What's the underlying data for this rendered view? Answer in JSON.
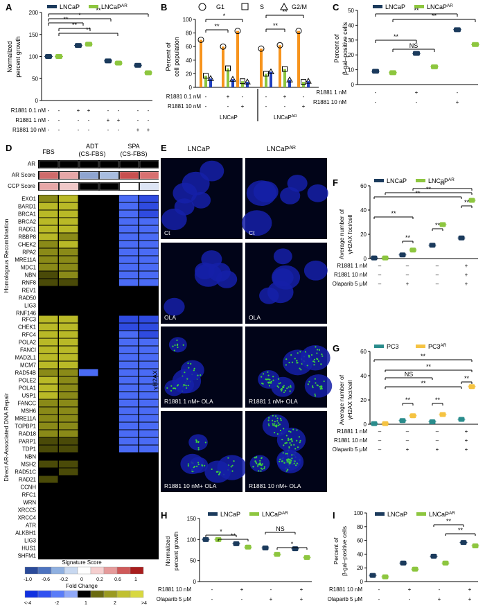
{
  "colors": {
    "navy": "#1b3a5c",
    "green": "#8dc63f",
    "orange": "#f7941d",
    "blue": "#1f3fbf",
    "teal": "#2a8c8c",
    "gold": "#f5c342",
    "nucleus": "#1520a8",
    "foci": "#3cd23c"
  },
  "panels": {
    "A": {
      "letter": "A",
      "ylabel1": "Normalized",
      "ylabel2": "percent growth",
      "legend": [
        {
          "label": "LNCaP",
          "sup": ""
        },
        {
          "label": "LNCaP",
          "sup": "AR"
        }
      ],
      "ticks": [
        "0",
        "50",
        "100",
        "150",
        "200"
      ],
      "sig": [
        "**",
        "*",
        "**",
        "**",
        "**"
      ],
      "rows": [
        {
          "label": "R1881 0.1 nM",
          "vals": [
            "-",
            "-",
            "+",
            "+",
            "-",
            "-",
            "-",
            "-"
          ]
        },
        {
          "label": "R1881 1 nM",
          "vals": [
            "-",
            "-",
            "-",
            "-",
            "+",
            "+",
            "-",
            "-"
          ]
        },
        {
          "label": "R1881 10 nM",
          "vals": [
            "-",
            "-",
            "-",
            "-",
            "-",
            "-",
            "+",
            "+"
          ]
        }
      ]
    },
    "B": {
      "letter": "B",
      "ylabel1": "Percent of",
      "ylabel2": "cell population",
      "legend": [
        "G1",
        "S",
        "G2/M"
      ],
      "ticks": [
        "0",
        "20",
        "40",
        "60",
        "80",
        "100"
      ],
      "sig": [
        "*",
        "**",
        "**",
        "**"
      ],
      "rows": [
        {
          "label": "R1881 0.1 nM",
          "vals": [
            "-",
            "+",
            "-",
            "-",
            "+",
            "-"
          ]
        },
        {
          "label": "R1881 10 nM",
          "vals": [
            "-",
            "-",
            "+",
            "-",
            "-",
            "+"
          ]
        }
      ],
      "groups": [
        {
          "label": "LNCaP",
          "sup": ""
        },
        {
          "label": "LNCaP",
          "sup": "AR"
        }
      ]
    },
    "C": {
      "letter": "C",
      "ylabel1": "Percent of",
      "ylabel2": "β-gal–positive cells",
      "legend": [
        {
          "label": "LNCaP",
          "sup": ""
        },
        {
          "label": "LNCaP",
          "sup": "AR"
        }
      ],
      "ticks": [
        "0",
        "10",
        "20",
        "30",
        "40",
        "50"
      ],
      "sig": [
        "**",
        "**",
        "**",
        "NS"
      ],
      "rows": [
        {
          "label": "R1881 1 nM",
          "vals": [
            "-",
            "+",
            "-"
          ]
        },
        {
          "label": "R1881 10 nM",
          "vals": [
            "-",
            "-",
            "+"
          ]
        }
      ]
    },
    "D": {
      "letter": "D",
      "cols": [
        "FBS",
        "ADT",
        "(CS-FBS)",
        "SPA",
        "(CS-FBS)"
      ],
      "toprows": [
        "AR",
        "AR Score",
        "CCP Score"
      ],
      "hr_label": "Homologous Recombination",
      "hr_genes": [
        "EXO1",
        "BARD1",
        "BRCA1",
        "BRCA2",
        "RAD51",
        "RBBP8",
        "CHEK2",
        "RPA2",
        "MRE11A",
        "MDC1",
        "NBN",
        "RNF8",
        "REV1",
        "RAD50",
        "LIG3",
        "RNF146"
      ],
      "ar_label": "Direct AR-Associated DNA Repair",
      "ar_genes": [
        "RFC3",
        "CHEK1",
        "RFC4",
        "POLA2",
        "FANCI",
        "MAD2L1",
        "MCM7",
        "RAD54B",
        "POLE2",
        "POLA1",
        "USP1",
        "FANCC",
        "MSH6",
        "MRE11A",
        "TOPBP1",
        "RAD18",
        "PARP1",
        "TDP1",
        "NBN",
        "MSH2",
        "RAD51C",
        "RAD21",
        "CCNH",
        "RFC1",
        "WRN",
        "XRCC5",
        "XRCC4",
        "ATR",
        "ALKBH1",
        "LIG3",
        "HUS1",
        "SHFM1"
      ],
      "sig_title": "Signature Score",
      "sig_ticks": [
        "-1.0",
        "-0.6",
        "-0.2",
        "0",
        "0.2",
        "0.6",
        "1"
      ],
      "fc_title": "Fold Change",
      "fc_ticks": [
        "<-4",
        "-2",
        "1",
        "2",
        ">4"
      ]
    },
    "E": {
      "letter": "E",
      "col1": "LNCaP",
      "col2": "LNCaP",
      "col2sup": "AR",
      "ylabel": "γH2AX",
      "labels": [
        [
          "Ct",
          "Ct"
        ],
        [
          "OLA",
          "OLA"
        ],
        [
          "R1881 1 nM+ OLA",
          "R1881 1 nM+ OLA"
        ],
        [
          "R1881 10 nM+ OLA",
          "R1881 10 nM+ OLA"
        ]
      ]
    },
    "F": {
      "letter": "F",
      "ylabel1": "Average number of",
      "ylabel2": "γH2AX foci/cell",
      "legend": [
        {
          "label": "LNCaP",
          "sup": ""
        },
        {
          "label": "LNCaP",
          "sup": "AR"
        }
      ],
      "ticks": [
        "0",
        "20",
        "40",
        "60"
      ],
      "sig": [
        "**",
        "**",
        "**",
        "**",
        "**",
        "**",
        "**"
      ],
      "rows": [
        {
          "label": "R1881 1 nM",
          "vals": [
            "–",
            "–",
            "–",
            "+"
          ]
        },
        {
          "label": "R1881 10 nM",
          "vals": [
            "–",
            "–",
            "–",
            "+"
          ]
        },
        {
          "label": "Olaparib 5 μM",
          "vals": [
            "–",
            "+",
            "–",
            "+"
          ]
        }
      ]
    },
    "G": {
      "letter": "G",
      "ylabel1": "Average number of",
      "ylabel2": "γH2AX foci/cell",
      "legend": [
        {
          "label": "PC3",
          "sup": ""
        },
        {
          "label": "PC3",
          "sup": "AR"
        }
      ],
      "ticks": [
        "0",
        "20",
        "40",
        "60"
      ],
      "sig": [
        "**",
        "**",
        "NS",
        "**",
        "**",
        "**",
        "**"
      ],
      "rows": [
        {
          "label": "R1881 1 nM",
          "vals": [
            "–",
            "–",
            "–",
            "+"
          ]
        },
        {
          "label": "R1881 10 nM",
          "vals": [
            "–",
            "–",
            "–",
            "+"
          ]
        },
        {
          "label": "Olaparib 5 μM",
          "vals": [
            "–",
            "+",
            "+",
            "+"
          ]
        }
      ]
    },
    "H": {
      "letter": "H",
      "ylabel1": "Normalized",
      "ylabel2": "percent growth",
      "legend": [
        {
          "label": "LNCaP",
          "sup": ""
        },
        {
          "label": "LNCaP",
          "sup": "AR"
        }
      ],
      "ticks": [
        "0",
        "50",
        "100",
        "150"
      ],
      "sig": [
        "*",
        "**",
        "NS",
        "*"
      ],
      "rows": [
        {
          "label": "R1881 10 nM",
          "vals": [
            "-",
            "+",
            "-",
            "+"
          ]
        },
        {
          "label": "Olaparib 5 μM",
          "vals": [
            "-",
            "-",
            "+",
            "+"
          ]
        }
      ]
    },
    "I": {
      "letter": "I",
      "ylabel1": "Percent of",
      "ylabel2": "β-gal–positive cells",
      "legend": [
        {
          "label": "LNCaP",
          "sup": ""
        },
        {
          "label": "LNCaP",
          "sup": "AR"
        }
      ],
      "ticks": [
        "0",
        "20",
        "40",
        "60",
        "80",
        "100"
      ],
      "sig": [
        "**",
        "**"
      ],
      "rows": [
        {
          "label": "R1881 10 nM",
          "vals": [
            "-",
            "+",
            "-",
            "+"
          ]
        },
        {
          "label": "Olaparib 5 μM",
          "vals": [
            "-",
            "-",
            "+",
            "+"
          ]
        }
      ]
    }
  },
  "chart_data": [
    {
      "panel": "A",
      "type": "scatter",
      "ylim": [
        0,
        200
      ],
      "series": [
        {
          "name": "LNCaP",
          "values": [
            100,
            125,
            90,
            80
          ]
        },
        {
          "name": "LNCaP AR",
          "values": [
            100,
            128,
            85,
            63
          ]
        }
      ]
    },
    {
      "panel": "B",
      "type": "bar",
      "ylim": [
        0,
        100
      ],
      "series": [
        {
          "name": "G1",
          "values": [
            70,
            60,
            83,
            57,
            62,
            83
          ]
        },
        {
          "name": "S",
          "values": [
            17,
            28,
            9,
            20,
            27,
            8
          ]
        },
        {
          "name": "G2/M",
          "values": [
            13,
            12,
            8,
            23,
            11,
            9
          ]
        }
      ]
    },
    {
      "panel": "C",
      "type": "scatter",
      "ylim": [
        0,
        50
      ],
      "series": [
        {
          "name": "LNCaP",
          "values": [
            9,
            21,
            37
          ]
        },
        {
          "name": "LNCaP AR",
          "values": [
            8,
            12,
            27
          ]
        }
      ]
    },
    {
      "panel": "D",
      "type": "heatmap",
      "hr_levels": [
        [
          2,
          3,
          0,
          0,
          -3,
          -2
        ],
        [
          3,
          3,
          0,
          0,
          -3,
          -2
        ],
        [
          3,
          3,
          0,
          0,
          -3,
          -2
        ],
        [
          3,
          3,
          0,
          0,
          -3,
          -3
        ],
        [
          3,
          3,
          0,
          0,
          -3,
          -3
        ],
        [
          3,
          2,
          0,
          0,
          -3,
          -3
        ],
        [
          2,
          3,
          0,
          0,
          -3,
          -3
        ],
        [
          2,
          2,
          0,
          0,
          -3,
          -3
        ],
        [
          2,
          2,
          0,
          0,
          -3,
          -3
        ],
        [
          2,
          2,
          0,
          0,
          -3,
          -3
        ],
        [
          1,
          2,
          0,
          0,
          -3,
          -3
        ],
        [
          1,
          1,
          0,
          0,
          -3,
          -3
        ],
        [
          0,
          0,
          0,
          0,
          0,
          0
        ],
        [
          0,
          0,
          0,
          0,
          0,
          0
        ],
        [
          0,
          0,
          0,
          0,
          0,
          0
        ],
        [
          0,
          0,
          0,
          0,
          0,
          0
        ]
      ],
      "ar_levels": [
        [
          3,
          3,
          0,
          0,
          -2,
          -2
        ],
        [
          3,
          3,
          0,
          0,
          -2,
          -2
        ],
        [
          3,
          3,
          0,
          0,
          -3,
          -2
        ],
        [
          3,
          3,
          0,
          0,
          -3,
          -3
        ],
        [
          3,
          3,
          0,
          0,
          -3,
          -3
        ],
        [
          3,
          3,
          0,
          0,
          -3,
          -3
        ],
        [
          3,
          3,
          0,
          0,
          -3,
          -3
        ],
        [
          2,
          2,
          -3,
          0,
          -3,
          -3
        ],
        [
          3,
          2,
          0,
          0,
          -3,
          -3
        ],
        [
          3,
          2,
          0,
          0,
          -3,
          -3
        ],
        [
          3,
          2,
          0,
          0,
          -3,
          -3
        ],
        [
          2,
          2,
          0,
          0,
          -3,
          -3
        ],
        [
          2,
          2,
          0,
          0,
          -3,
          -3
        ],
        [
          2,
          2,
          0,
          0,
          -3,
          -3
        ],
        [
          2,
          2,
          0,
          0,
          -3,
          -3
        ],
        [
          2,
          2,
          0,
          0,
          -3,
          -3
        ],
        [
          1,
          1,
          0,
          0,
          -3,
          -3
        ],
        [
          1,
          1,
          0,
          0,
          -3,
          -3
        ],
        [
          0,
          0,
          0,
          0,
          0,
          0
        ],
        [
          1,
          1,
          0,
          0,
          0,
          0
        ],
        [
          0,
          1,
          0,
          0,
          0,
          0
        ],
        [
          1,
          0,
          0,
          0,
          0,
          0
        ],
        [
          0,
          0,
          0,
          0,
          0,
          0
        ],
        [
          0,
          0,
          0,
          0,
          0,
          0
        ],
        [
          0,
          0,
          0,
          0,
          0,
          0
        ],
        [
          0,
          0,
          0,
          0,
          0,
          0
        ],
        [
          0,
          0,
          0,
          0,
          0,
          0
        ],
        [
          0,
          0,
          0,
          0,
          0,
          0
        ],
        [
          0,
          0,
          0,
          0,
          0,
          0
        ],
        [
          0,
          0,
          0,
          0,
          0,
          0
        ],
        [
          0,
          0,
          0,
          0,
          0,
          0
        ],
        [
          0,
          0,
          0,
          0,
          0,
          0
        ]
      ]
    },
    {
      "panel": "F",
      "type": "scatter",
      "ylim": [
        0,
        60
      ],
      "series": [
        {
          "name": "LNCaP",
          "values": [
            0.5,
            3,
            11,
            17
          ]
        },
        {
          "name": "LNCaP AR",
          "values": [
            0.5,
            7,
            28,
            48
          ]
        }
      ]
    },
    {
      "panel": "G",
      "type": "scatter",
      "ylim": [
        0,
        60
      ],
      "series": [
        {
          "name": "PC3",
          "values": [
            0.5,
            3,
            2,
            4
          ]
        },
        {
          "name": "PC3 AR",
          "values": [
            0.5,
            7,
            8,
            31
          ]
        }
      ]
    },
    {
      "panel": "H",
      "type": "scatter",
      "ylim": [
        0,
        150
      ],
      "series": [
        {
          "name": "LNCaP",
          "values": [
            100,
            90,
            80,
            78
          ]
        },
        {
          "name": "LNCaP AR",
          "values": [
            100,
            82,
            65,
            57
          ]
        }
      ]
    },
    {
      "panel": "I",
      "type": "scatter",
      "ylim": [
        0,
        100
      ],
      "series": [
        {
          "name": "LNCaP",
          "values": [
            9,
            27,
            37,
            57
          ]
        },
        {
          "name": "LNCaP AR",
          "values": [
            7,
            18,
            27,
            52
          ]
        }
      ]
    }
  ]
}
